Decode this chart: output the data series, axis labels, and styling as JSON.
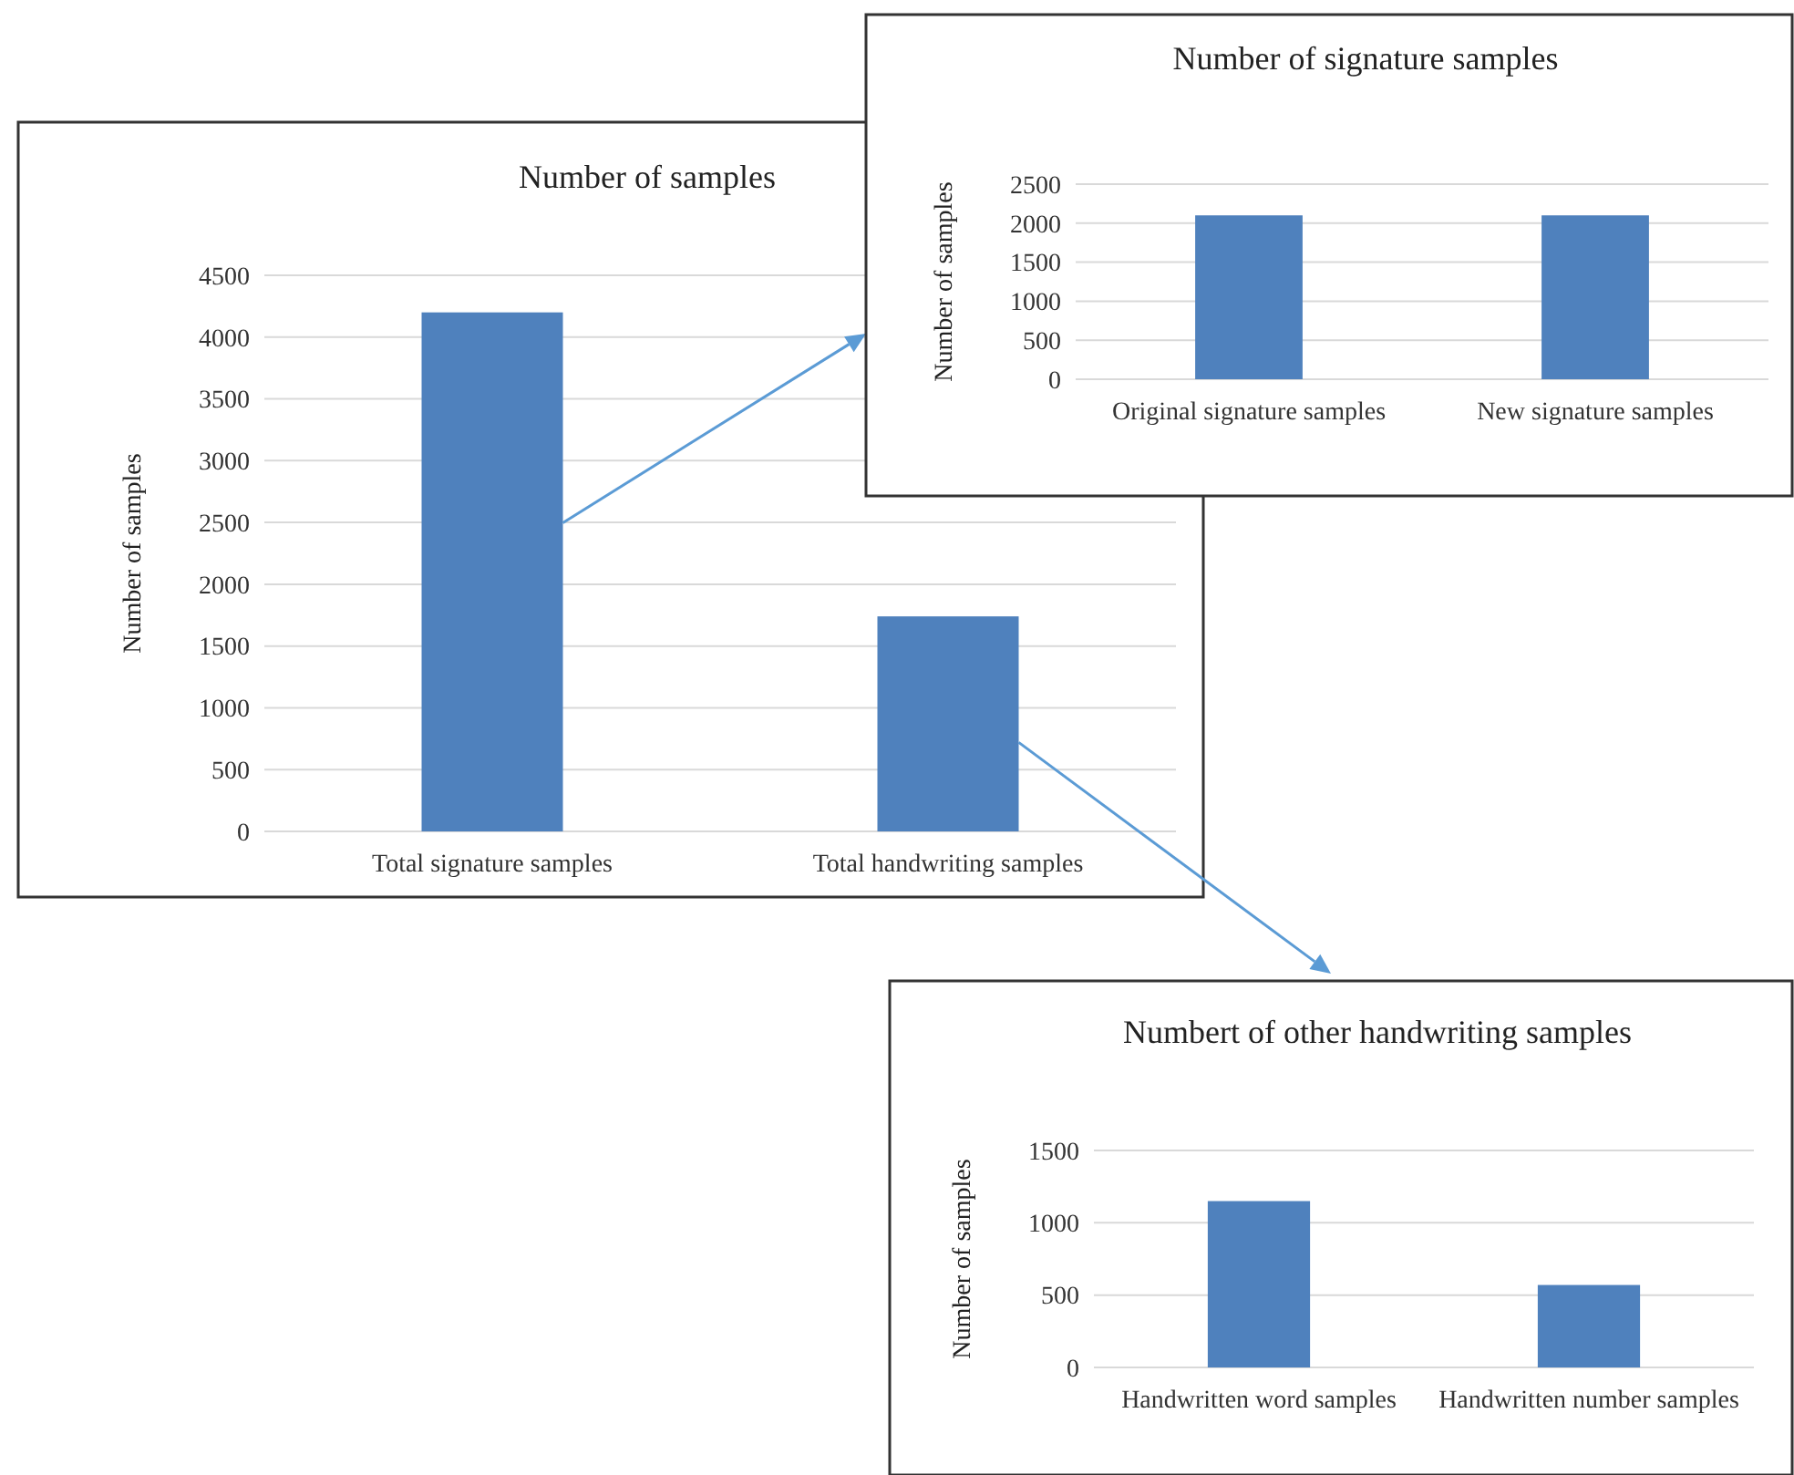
{
  "chart_data": [
    {
      "type": "bar",
      "title": "Number of samples",
      "ylabel": "Number of samples",
      "categories": [
        "Total signature samples",
        "Total handwriting samples"
      ],
      "values": [
        4200,
        1740
      ],
      "color": "#4f81bd",
      "ylim": [
        0,
        4500
      ],
      "yticks": [
        0,
        500,
        1000,
        1500,
        2000,
        2500,
        3000,
        3500,
        4000,
        4500
      ],
      "grid": "y"
    },
    {
      "type": "bar",
      "title": "Number of signature samples",
      "ylabel": "Number of samples",
      "categories": [
        "Original signature samples",
        "New signature samples"
      ],
      "values": [
        2100,
        2100
      ],
      "color": "#4f81bd",
      "ylim": [
        0,
        2500
      ],
      "yticks": [
        0,
        500,
        1000,
        1500,
        2000,
        2500
      ],
      "grid": "y"
    },
    {
      "type": "bar",
      "title": "Numbert of other handwriting samples",
      "ylabel": "Number of samples",
      "categories": [
        "Handwritten word samples",
        "Handwritten number samples"
      ],
      "values": [
        1150,
        570
      ],
      "color": "#4f81bd",
      "ylim": [
        0,
        1500
      ],
      "yticks": [
        0,
        500,
        1000,
        1500
      ],
      "grid": "y"
    }
  ]
}
